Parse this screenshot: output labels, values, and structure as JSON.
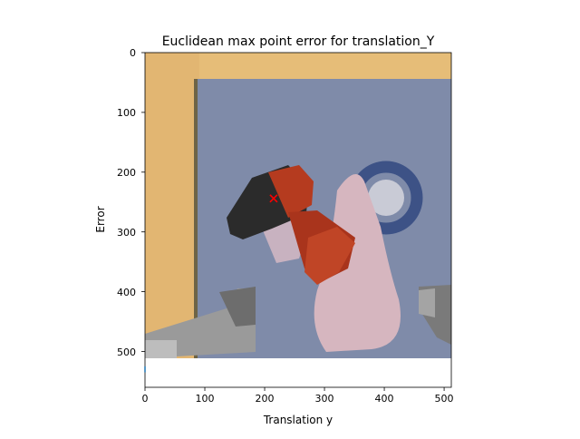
{
  "chart_data": {
    "type": "scatter",
    "title": "Euclidean max point error for translation_Y",
    "xlabel": "Translation y",
    "ylabel": "Error",
    "xlim": [
      0,
      512
    ],
    "ylim": [
      560,
      0
    ],
    "x_ticks": [
      0,
      100,
      200,
      300,
      400,
      500
    ],
    "y_ticks": [
      0,
      100,
      200,
      300,
      400,
      500
    ],
    "x_tick_labels": [
      "0",
      "100",
      "200",
      "300",
      "400",
      "500"
    ],
    "y_tick_labels": [
      "0",
      "100",
      "200",
      "300",
      "400",
      "500"
    ],
    "background": "image of a red cordless drill held by robot grippers over a blue-grey poster on a wooden table",
    "series": [
      {
        "marker": "x",
        "color": "#ff0000",
        "points": [
          [
            215,
            244
          ]
        ]
      },
      {
        "marker": "line",
        "color": "#1f77b4",
        "points": [
          [
            0,
            525
          ],
          [
            0,
            535
          ]
        ]
      }
    ],
    "grid": false
  },
  "colors": {
    "marker": "#ff0000",
    "line": "#1f77b4",
    "wood": "#e9c27c",
    "poster": "#7e8aa8",
    "drill": "#b83a1e"
  }
}
